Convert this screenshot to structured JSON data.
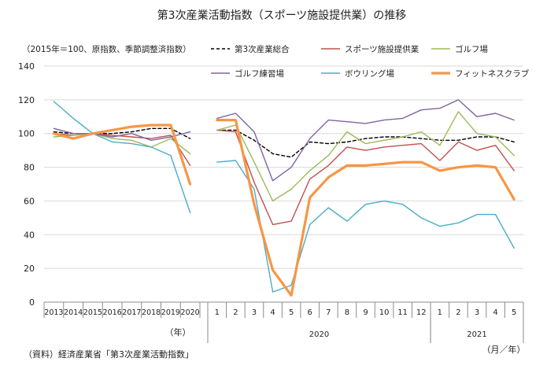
{
  "chart_data": {
    "type": "line",
    "title": "第3次産業活動指数（スポーツ施設提供業）の推移",
    "unit_note": "（2015年＝100、原指数、季節調整済指数）",
    "source": "（資料）経済産業省「第3次産業活動指数」",
    "ylim": [
      0,
      140
    ],
    "yticks": [
      0,
      20,
      40,
      60,
      80,
      100,
      120,
      140
    ],
    "annual_panel": {
      "categories": [
        "2013",
        "2014",
        "2015",
        "2016",
        "2017",
        "2018",
        "2019",
        "2020"
      ],
      "axis_label": "（年）"
    },
    "monthly_panel": {
      "categories": [
        "1",
        "2",
        "3",
        "4",
        "5",
        "6",
        "7",
        "8",
        "9",
        "10",
        "11",
        "12",
        "1",
        "2",
        "3",
        "4",
        "5"
      ],
      "year_labels": [
        {
          "label": "2020",
          "start": 0,
          "end": 11
        },
        {
          "label": "2021",
          "start": 12,
          "end": 16
        }
      ],
      "axis_label": "（月／年）"
    },
    "legend_placement": "top",
    "series": [
      {
        "name": "第3次産業総合",
        "color": "#000000",
        "dashed": true,
        "bold": false,
        "annual": [
          101,
          100,
          100,
          100,
          101,
          103,
          103,
          97
        ],
        "monthly": [
          102,
          102,
          96,
          88,
          86,
          95,
          94,
          95,
          97,
          98,
          98,
          97,
          96,
          96,
          98,
          98,
          95
        ]
      },
      {
        "name": "スポーツ施設提供業",
        "color": "#c0504d",
        "dashed": false,
        "bold": false,
        "annual": [
          100,
          99,
          100,
          99,
          98,
          97,
          99,
          81
        ],
        "monthly": [
          102,
          101,
          71,
          46,
          48,
          73,
          81,
          92,
          90,
          92,
          93,
          94,
          84,
          95,
          90,
          93,
          78
        ]
      },
      {
        "name": "ゴルフ場",
        "color": "#9bbb59",
        "dashed": false,
        "bold": false,
        "annual": [
          98,
          99,
          100,
          97,
          96,
          92,
          97,
          88
        ],
        "monthly": [
          102,
          105,
          83,
          60,
          67,
          78,
          87,
          101,
          94,
          96,
          98,
          101,
          93,
          113,
          100,
          98,
          87
        ]
      },
      {
        "name": "ゴルフ練習場",
        "color": "#8064a2",
        "dashed": false,
        "bold": false,
        "annual": [
          103,
          100,
          100,
          98,
          100,
          96,
          98,
          101
        ],
        "monthly": [
          109,
          112,
          101,
          72,
          80,
          97,
          108,
          107,
          106,
          108,
          109,
          114,
          115,
          120,
          110,
          112,
          108
        ]
      },
      {
        "name": "ボウリング場",
        "color": "#4bacc6",
        "dashed": false,
        "bold": false,
        "annual": [
          119,
          109,
          100,
          95,
          94,
          92,
          87,
          53
        ],
        "monthly": [
          83,
          84,
          67,
          6,
          10,
          46,
          56,
          48,
          58,
          60,
          58,
          50,
          45,
          47,
          52,
          52,
          32
        ]
      },
      {
        "name": "フィットネスクラブ",
        "color": "#f79646",
        "dashed": false,
        "bold": true,
        "annual": [
          100,
          97,
          100,
          102,
          104,
          105,
          105,
          70
        ],
        "monthly": [
          108,
          108,
          58,
          19,
          4,
          62,
          74,
          81,
          81,
          82,
          83,
          83,
          78,
          80,
          81,
          80,
          61
        ]
      }
    ]
  }
}
